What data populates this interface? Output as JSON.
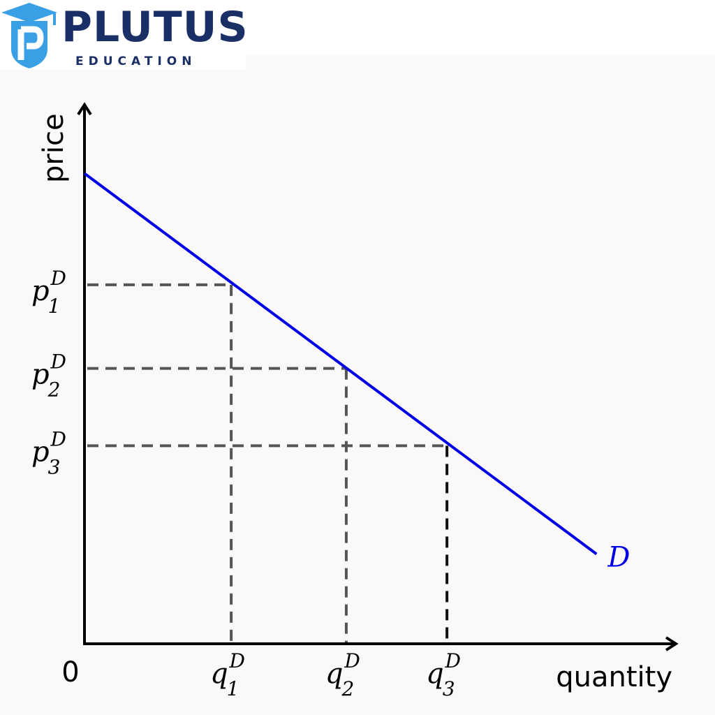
{
  "logo": {
    "name": "PLUTUS",
    "tagline": "EDUCATION",
    "colors": {
      "navy": "#1a2f66",
      "sky": "#3aa0e6"
    },
    "icon": "graduation-cap-shield-icon"
  },
  "chart_data": {
    "type": "line",
    "title": "",
    "xlabel": "quantity",
    "ylabel": "price",
    "origin_label": "0",
    "grid": false,
    "series": [
      {
        "name": "D",
        "color": "#0000e6",
        "x": [
          0,
          8.9
        ],
        "y": [
          7.6,
          1.45
        ]
      }
    ],
    "reference_points": [
      {
        "q_label": "q",
        "q_sub": "1",
        "q_sup": "D",
        "p_label": "p",
        "p_sub": "1",
        "p_sup": "D",
        "q": 2.55,
        "p": 5.8
      },
      {
        "q_label": "q",
        "q_sub": "2",
        "q_sup": "D",
        "p_label": "p",
        "p_sub": "2",
        "p_sup": "D",
        "q": 4.55,
        "p": 4.45
      },
      {
        "q_label": "q",
        "q_sub": "3",
        "q_sup": "D",
        "p_label": "p",
        "p_sub": "3",
        "p_sup": "D",
        "q": 6.3,
        "p": 3.2
      }
    ],
    "xlim": [
      0,
      10
    ],
    "ylim": [
      0,
      8.8
    ],
    "ticks_shown": false
  }
}
